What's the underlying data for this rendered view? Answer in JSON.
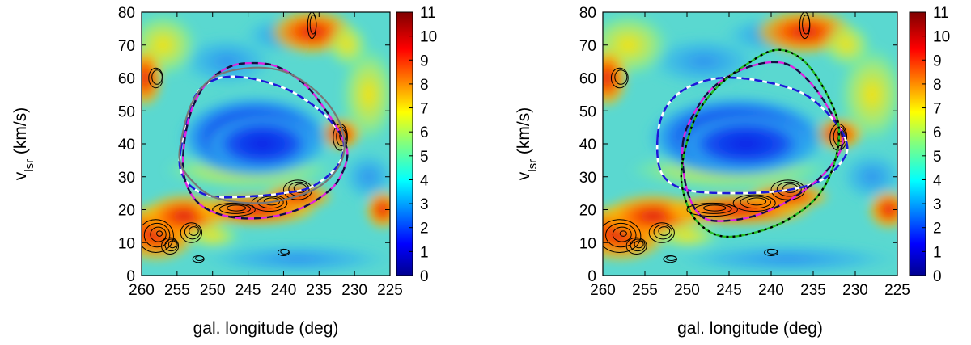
{
  "chart_data": [
    {
      "type": "heatmap",
      "panel": "left",
      "xlabel": "gal. longitude (deg)",
      "ylabel": "v",
      "ylabel_sub": "lsr",
      "ylabel_unit": " (km/s)",
      "xlim": [
        260,
        225
      ],
      "ylim": [
        0,
        80
      ],
      "x_ticks": [
        260,
        255,
        250,
        245,
        240,
        235,
        230,
        225
      ],
      "y_ticks": [
        0,
        10,
        20,
        30,
        40,
        50,
        60,
        70,
        80
      ],
      "colorbar": {
        "range": [
          0,
          11
        ],
        "ticks": [
          0,
          1,
          2,
          3,
          4,
          5,
          6,
          7,
          8,
          9,
          10,
          11
        ]
      },
      "overlays": [
        {
          "name": "",
          "style": "dashed-black-white",
          "points": [
            [
              254.5,
              38
            ],
            [
              253.5,
              48
            ],
            [
              252,
              56
            ],
            [
              249,
              60
            ],
            [
              245,
              60
            ],
            [
              240,
              57
            ],
            [
              236,
              52
            ],
            [
              233,
              46
            ],
            [
              231.5,
              40
            ],
            [
              232.5,
              33
            ],
            [
              236,
              27
            ],
            [
              240,
              25
            ],
            [
              245,
              24
            ],
            [
              250,
              24
            ],
            [
              253,
              27
            ],
            [
              254.5,
              32
            ],
            [
              254.5,
              38
            ]
          ]
        },
        {
          "name": "",
          "style": "dashed-magenta-blue",
          "points": [
            [
              254,
              40
            ],
            [
              253,
              50
            ],
            [
              251,
              58
            ],
            [
              248,
              63
            ],
            [
              245,
              64.5
            ],
            [
              241,
              63.5
            ],
            [
              237,
              58
            ],
            [
              234,
              50
            ],
            [
              232,
              43
            ],
            [
              231,
              37
            ],
            [
              232,
              30
            ],
            [
              234,
              25
            ],
            [
              238,
              20
            ],
            [
              243,
              17.5
            ],
            [
              248,
              18
            ],
            [
              252,
              22
            ],
            [
              254,
              30
            ],
            [
              254,
              40
            ]
          ]
        },
        {
          "name": "",
          "style": "solid-gray",
          "points": [
            [
              254.5,
              40
            ],
            [
              253,
              52
            ],
            [
              250,
              60
            ],
            [
              245,
              63
            ],
            [
              240,
              62
            ],
            [
              236,
              57
            ],
            [
              233,
              50
            ],
            [
              231.5,
              42
            ],
            [
              232,
              34
            ],
            [
              235,
              27
            ],
            [
              240,
              23
            ],
            [
              245,
              22
            ],
            [
              250,
              24
            ],
            [
              253,
              29
            ],
            [
              254.5,
              34
            ],
            [
              254.5,
              40
            ]
          ]
        }
      ]
    },
    {
      "type": "heatmap",
      "panel": "right",
      "xlabel": "gal. longitude (deg)",
      "ylabel": "v",
      "ylabel_sub": "lsr",
      "ylabel_unit": " (km/s)",
      "xlim": [
        260,
        225
      ],
      "ylim": [
        0,
        80
      ],
      "x_ticks": [
        260,
        255,
        250,
        245,
        240,
        235,
        230,
        225
      ],
      "y_ticks": [
        0,
        10,
        20,
        30,
        40,
        50,
        60,
        70,
        80
      ],
      "colorbar": {
        "range": [
          0,
          11
        ],
        "ticks": [
          0,
          1,
          2,
          3,
          4,
          5,
          6,
          7,
          8,
          9,
          10,
          11
        ]
      },
      "overlays": [
        {
          "name": "",
          "style": "dashed-black-white",
          "points": [
            [
              253.5,
              42
            ],
            [
              252.5,
              51
            ],
            [
              250,
              57
            ],
            [
              246,
              60
            ],
            [
              241,
              59
            ],
            [
              236,
              55
            ],
            [
              232.5,
              47
            ],
            [
              231,
              40
            ],
            [
              231.5,
              35
            ],
            [
              234,
              29
            ],
            [
              238,
              26
            ],
            [
              244,
              25
            ],
            [
              250,
              26
            ],
            [
              253,
              31
            ],
            [
              253.5,
              42
            ]
          ]
        },
        {
          "name": "",
          "style": "dashed-magenta-blue",
          "points": [
            [
              250.5,
              40
            ],
            [
              249,
              50
            ],
            [
              246.5,
              58
            ],
            [
              242.5,
              63.5
            ],
            [
              238.5,
              64.5
            ],
            [
              235.5,
              59
            ],
            [
              233,
              50
            ],
            [
              231.5,
              41
            ],
            [
              233,
              33
            ],
            [
              236,
              26
            ],
            [
              240,
              20
            ],
            [
              244,
              17
            ],
            [
              248,
              17.5
            ],
            [
              250,
              26
            ],
            [
              250.5,
              40
            ]
          ]
        },
        {
          "name": "",
          "style": "dotted-green",
          "points": [
            [
              250.5,
              35
            ],
            [
              249,
              48
            ],
            [
              246.5,
              57
            ],
            [
              243,
              64
            ],
            [
              239.5,
              68.5
            ],
            [
              236.5,
              66
            ],
            [
              234,
              58
            ],
            [
              232,
              46
            ],
            [
              232.5,
              34
            ],
            [
              234.5,
              24
            ],
            [
              238,
              17
            ],
            [
              242,
              13
            ],
            [
              246,
              12
            ],
            [
              249,
              17
            ],
            [
              250.5,
              26
            ],
            [
              250.5,
              35
            ]
          ]
        }
      ]
    }
  ]
}
